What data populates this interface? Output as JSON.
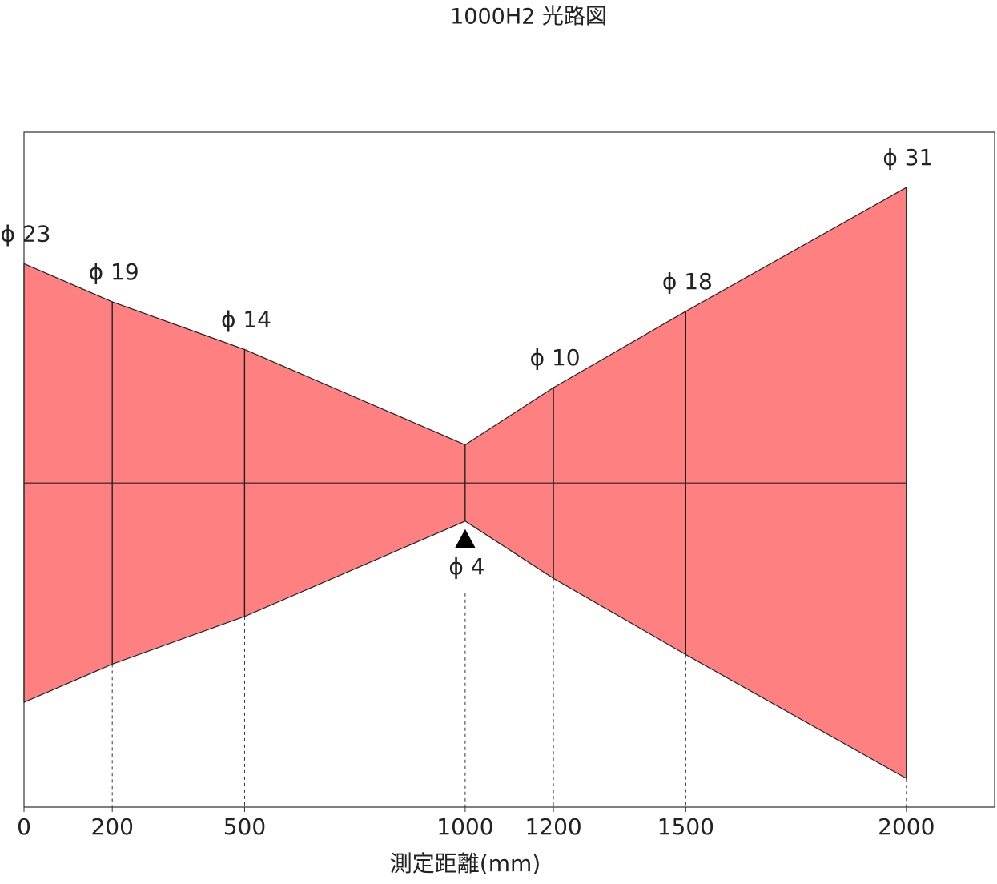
{
  "chart_data": {
    "type": "beam",
    "title": "1000H2 光路図",
    "x_label": "測定距離(mm)",
    "x": [
      0,
      200,
      500,
      1000,
      1200,
      1500,
      2000
    ],
    "values": [
      23,
      19,
      14,
      4,
      10,
      18,
      31
    ],
    "value_labels": [
      "ϕ 23",
      "ϕ 19",
      "ϕ 14",
      "ϕ 4",
      "ϕ 10",
      "ϕ 18",
      "ϕ 31"
    ],
    "color": "#ff8080",
    "xlim": [
      0,
      2200
    ],
    "xticks": [
      0,
      200,
      500,
      1000,
      1200,
      1500,
      2000
    ],
    "ylim": [
      -17,
      18.4
    ]
  }
}
